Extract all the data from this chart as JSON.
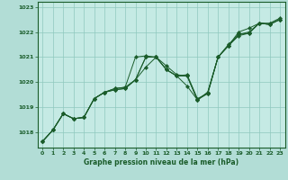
{
  "title": "Graphe pression niveau de la mer (hPa)",
  "background_color": "#b2ddd6",
  "plot_bg_color": "#c5eae4",
  "grid_color": "#8fc8be",
  "line_color": "#1a5c2a",
  "marker_color": "#1a5c2a",
  "xlim": [
    -0.5,
    23.5
  ],
  "ylim": [
    1017.4,
    1023.2
  ],
  "yticks": [
    1018,
    1019,
    1020,
    1021,
    1022,
    1023
  ],
  "xticks": [
    0,
    1,
    2,
    3,
    4,
    5,
    6,
    7,
    8,
    9,
    10,
    11,
    12,
    13,
    14,
    15,
    16,
    17,
    18,
    19,
    20,
    21,
    22,
    23
  ],
  "series": [
    [
      1017.65,
      1018.1,
      1018.75,
      1018.55,
      1018.6,
      1019.35,
      1019.6,
      1019.7,
      1019.75,
      1020.1,
      1021.0,
      1021.0,
      1020.65,
      1020.3,
      1020.25,
      1019.3,
      1019.6,
      1021.0,
      1021.5,
      1021.9,
      1022.0,
      1022.35,
      1022.35,
      1022.55
    ],
    [
      1017.65,
      1018.1,
      1018.75,
      1018.55,
      1018.6,
      1019.35,
      1019.6,
      1019.7,
      1019.75,
      1020.1,
      1021.0,
      1021.0,
      1020.5,
      1020.25,
      1020.25,
      1019.3,
      1019.6,
      1021.0,
      1021.45,
      1021.9,
      1021.95,
      1022.35,
      1022.3,
      1022.5
    ],
    [
      1017.65,
      1018.1,
      1018.75,
      1018.55,
      1018.6,
      1019.35,
      1019.6,
      1019.75,
      1019.8,
      1020.1,
      1020.6,
      1021.0,
      1020.5,
      1020.25,
      1020.3,
      1019.35,
      1019.55,
      1021.0,
      1021.45,
      1021.85,
      1021.95,
      1022.35,
      1022.3,
      1022.5
    ],
    [
      1017.65,
      1018.1,
      1018.75,
      1018.55,
      1018.6,
      1019.35,
      1019.6,
      1019.75,
      1019.8,
      1021.0,
      1021.05,
      1021.0,
      1020.5,
      1020.25,
      1019.85,
      1019.3,
      1019.55,
      1021.0,
      1021.45,
      1022.0,
      1022.15,
      1022.35,
      1022.3,
      1022.5
    ]
  ]
}
